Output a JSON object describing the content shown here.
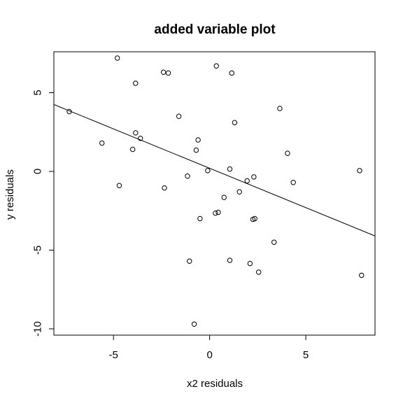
{
  "chart_data": {
    "type": "scatter",
    "title": "added variable plot",
    "xlabel": "x2 residuals",
    "ylabel": "y residuals",
    "xlim": [
      -8.1,
      8.6
    ],
    "ylim": [
      -10.4,
      7.6
    ],
    "x_ticks": [
      -5,
      0,
      5
    ],
    "x_tick_labels": [
      "-5",
      "0",
      "5"
    ],
    "y_ticks": [
      -10,
      -5,
      0,
      5
    ],
    "y_tick_labels": [
      "-10",
      "-5",
      "0",
      "5"
    ],
    "grid": false,
    "legend": false,
    "marker": "open-circle",
    "points": [
      {
        "x": -7.3,
        "y": 3.8
      },
      {
        "x": -4.8,
        "y": 7.2
      },
      {
        "x": -5.6,
        "y": 1.8
      },
      {
        "x": -4.7,
        "y": -0.9
      },
      {
        "x": -4.0,
        "y": 1.4
      },
      {
        "x": -3.85,
        "y": 5.6
      },
      {
        "x": -3.85,
        "y": 2.45
      },
      {
        "x": -3.6,
        "y": 2.1
      },
      {
        "x": -2.4,
        "y": 6.3
      },
      {
        "x": -2.15,
        "y": 6.25
      },
      {
        "x": -2.35,
        "y": -1.05
      },
      {
        "x": -1.6,
        "y": 3.5
      },
      {
        "x": -1.15,
        "y": -0.3
      },
      {
        "x": -1.05,
        "y": -5.7
      },
      {
        "x": -0.7,
        "y": 1.35
      },
      {
        "x": -0.6,
        "y": 2.0
      },
      {
        "x": -0.5,
        "y": -3.0
      },
      {
        "x": -0.8,
        "y": -9.7
      },
      {
        "x": -0.1,
        "y": 0.05
      },
      {
        "x": 0.3,
        "y": -2.65
      },
      {
        "x": 0.45,
        "y": -2.6
      },
      {
        "x": 0.35,
        "y": 6.7
      },
      {
        "x": 0.75,
        "y": -1.65
      },
      {
        "x": 1.05,
        "y": 0.15
      },
      {
        "x": 1.15,
        "y": 6.25
      },
      {
        "x": 1.05,
        "y": -5.65
      },
      {
        "x": 1.3,
        "y": 3.1
      },
      {
        "x": 1.55,
        "y": -1.3
      },
      {
        "x": 1.95,
        "y": -0.6
      },
      {
        "x": 2.1,
        "y": -5.85
      },
      {
        "x": 2.3,
        "y": -0.35
      },
      {
        "x": 2.25,
        "y": -3.05
      },
      {
        "x": 2.35,
        "y": -3.0
      },
      {
        "x": 2.55,
        "y": -6.4
      },
      {
        "x": 3.35,
        "y": -4.5
      },
      {
        "x": 3.65,
        "y": 4.0
      },
      {
        "x": 4.05,
        "y": 1.15
      },
      {
        "x": 4.35,
        "y": -0.7
      },
      {
        "x": 7.8,
        "y": 0.05
      },
      {
        "x": 7.9,
        "y": -6.6
      }
    ],
    "fit_line": {
      "intercept": 0.2,
      "slope": -0.5
    }
  }
}
